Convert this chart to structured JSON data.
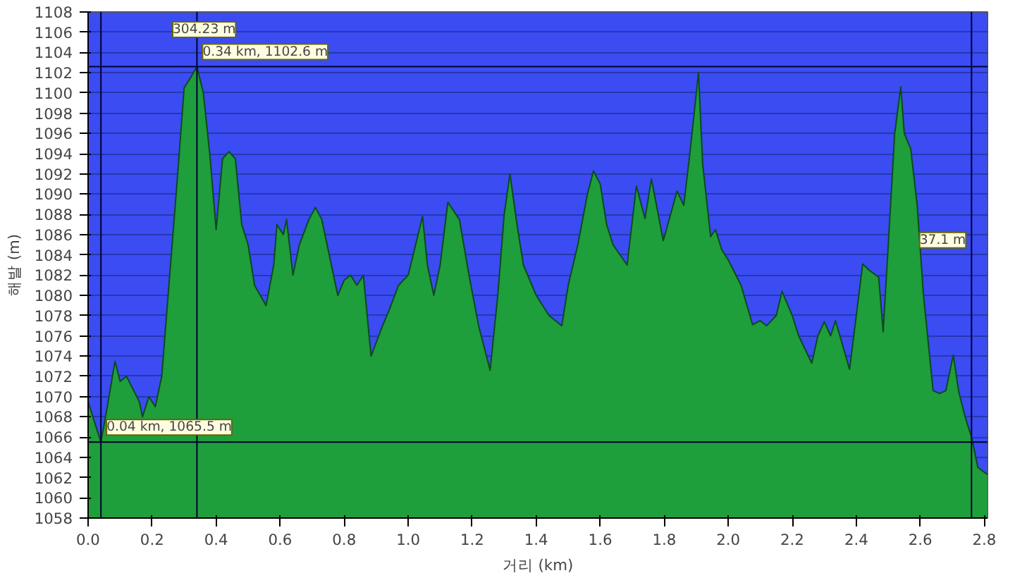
{
  "chart_data": {
    "type": "area",
    "xlabel": "거리 (km)",
    "ylabel": "해발 (m)",
    "color": "#1f9e3c",
    "x": [
      0.0,
      0.02,
      0.04,
      0.06,
      0.084,
      0.1,
      0.12,
      0.16,
      0.17,
      0.19,
      0.21,
      0.23,
      0.25,
      0.28,
      0.3,
      0.32,
      0.34,
      0.36,
      0.38,
      0.4,
      0.42,
      0.44,
      0.46,
      0.48,
      0.5,
      0.52,
      0.556,
      0.58,
      0.59,
      0.61,
      0.62,
      0.64,
      0.66,
      0.69,
      0.71,
      0.73,
      0.76,
      0.78,
      0.8,
      0.82,
      0.84,
      0.86,
      0.884,
      0.92,
      0.94,
      0.97,
      1.0,
      1.045,
      1.06,
      1.08,
      1.1,
      1.124,
      1.16,
      1.19,
      1.22,
      1.256,
      1.28,
      1.3,
      1.318,
      1.34,
      1.36,
      1.4,
      1.44,
      1.48,
      1.5,
      1.53,
      1.56,
      1.579,
      1.6,
      1.62,
      1.64,
      1.684,
      1.713,
      1.74,
      1.76,
      1.797,
      1.84,
      1.861,
      1.88,
      1.907,
      1.92,
      1.945,
      1.96,
      1.98,
      2.0,
      2.04,
      2.076,
      2.1,
      2.12,
      2.15,
      2.168,
      2.2,
      2.22,
      2.261,
      2.28,
      2.3,
      2.32,
      2.335,
      2.379,
      2.4,
      2.42,
      2.44,
      2.47,
      2.484,
      2.5,
      2.52,
      2.539,
      2.55,
      2.57,
      2.59,
      2.61,
      2.64,
      2.66,
      2.68,
      2.703,
      2.72,
      2.74,
      2.76,
      2.78,
      2.81
    ],
    "values": [
      1069.5,
      1067.5,
      1065.5,
      1069,
      1073.5,
      1071.5,
      1072,
      1069.5,
      1068,
      1070,
      1069,
      1072,
      1080,
      1092,
      1100.5,
      1101.5,
      1102.6,
      1100,
      1094,
      1086.5,
      1093.5,
      1094.2,
      1093.5,
      1087,
      1085,
      1081,
      1079,
      1083,
      1087,
      1086,
      1087.5,
      1082,
      1085,
      1087.5,
      1088.7,
      1087.5,
      1083,
      1080,
      1081.5,
      1082,
      1081,
      1082,
      1074,
      1077,
      1078.5,
      1081,
      1082,
      1087.8,
      1083,
      1080,
      1083,
      1089.2,
      1087.5,
      1082,
      1077,
      1072.6,
      1080,
      1088,
      1092,
      1087,
      1083,
      1080,
      1078,
      1077,
      1081,
      1085,
      1090,
      1092.3,
      1091,
      1087,
      1085,
      1083,
      1090.8,
      1087.6,
      1091.5,
      1085.4,
      1090.3,
      1088.9,
      1094,
      1102,
      1093,
      1085.8,
      1086.5,
      1084.5,
      1083.5,
      1081,
      1077.1,
      1077.5,
      1077,
      1078,
      1080.4,
      1078,
      1076,
      1073.3,
      1076,
      1077.4,
      1076,
      1077.5,
      1072.7,
      1078,
      1083.1,
      1082.5,
      1081.8,
      1076.4,
      1085,
      1096,
      1100.6,
      1096,
      1094.5,
      1089,
      1080,
      1070.6,
      1070.3,
      1070.6,
      1074.1,
      1070.5,
      1068,
      1066,
      1063,
      1062.3
    ],
    "xlim": [
      0,
      2.81
    ],
    "ylim": [
      1058,
      1108
    ],
    "xticks": [
      {
        "value": 0,
        "label": "0.0"
      },
      0.2,
      0.4,
      0.6,
      0.8,
      {
        "value": 1,
        "label": "1.0"
      },
      1.2,
      1.4,
      1.6,
      1.8,
      {
        "value": 2,
        "label": "2.0"
      },
      2.2,
      2.4,
      2.6,
      2.8
    ],
    "yticks": [
      1058,
      1060,
      1062,
      1064,
      1066,
      1068,
      1070,
      1072,
      1074,
      1076,
      1078,
      1080,
      1082,
      1084,
      1086,
      1088,
      1090,
      1092,
      1094,
      1096,
      1098,
      1100,
      1102,
      1104,
      1106,
      1108
    ],
    "grid": "y",
    "ref_lines": [
      {
        "axis": "x",
        "value": 0.04,
        "color": "#000033"
      },
      {
        "axis": "x",
        "value": 0.34,
        "color": "#000033"
      },
      {
        "axis": "y",
        "value": 1102.6,
        "color": "#000033"
      },
      {
        "axis": "y",
        "value": 1065.5,
        "color": "#000033"
      },
      {
        "axis": "x",
        "value": 2.76,
        "color": "#000033"
      }
    ],
    "annotations": [
      "304.23 m",
      {
        "text": "0.34 km, 1102.6 m",
        "x": 0.34,
        "y": 1102.6
      },
      {
        "text": "0.04 km, 1065.5 m",
        "x": 0.04,
        "y": 1065.5
      },
      {
        "text": "37.1 m",
        "x": 2.76,
        "y": 1084
      }
    ]
  }
}
